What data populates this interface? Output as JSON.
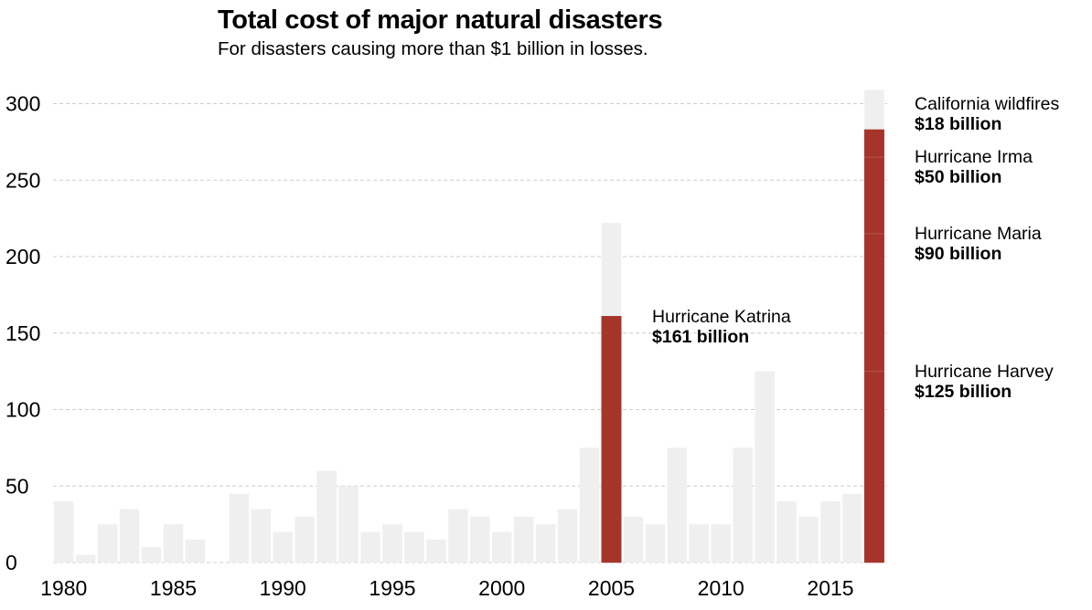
{
  "title": "Total cost of major natural disasters",
  "subtitle": "For disasters causing more than $1 billion in losses.",
  "colors": {
    "background_bar": "#efefef",
    "highlight": "#a5342b",
    "grid": "#cccccc",
    "text": "#000000"
  },
  "chart_data": {
    "type": "bar",
    "title": "Total cost of major natural disasters",
    "subtitle": "For disasters causing more than $1 billion in losses.",
    "xlabel": "",
    "ylabel": "",
    "ylim": [
      0,
      310
    ],
    "grid": true,
    "yticks": [
      0,
      50,
      100,
      150,
      200,
      250,
      300
    ],
    "xticks": [
      1980,
      1985,
      1990,
      1995,
      2000,
      2005,
      2010,
      2015
    ],
    "categories": [
      1980,
      1981,
      1982,
      1983,
      1984,
      1985,
      1986,
      1987,
      1988,
      1989,
      1990,
      1991,
      1992,
      1993,
      1994,
      1995,
      1996,
      1997,
      1998,
      1999,
      2000,
      2001,
      2002,
      2003,
      2004,
      2005,
      2006,
      2007,
      2008,
      2009,
      2010,
      2011,
      2012,
      2013,
      2014,
      2015,
      2016,
      2017
    ],
    "totals": [
      40,
      5,
      25,
      35,
      10,
      25,
      15,
      0,
      45,
      35,
      20,
      30,
      60,
      50,
      20,
      25,
      20,
      15,
      35,
      30,
      20,
      30,
      25,
      35,
      75,
      222,
      30,
      25,
      75,
      25,
      25,
      75,
      125,
      40,
      30,
      40,
      45,
      309
    ],
    "highlighted_events": [
      {
        "year": 2005,
        "name": "Hurricane Katrina",
        "value_label": "$161 billion",
        "value": 161
      },
      {
        "year": 2017,
        "name": "Hurricane Harvey",
        "value_label": "$125 billion",
        "value": 125
      },
      {
        "year": 2017,
        "name": "Hurricane Maria",
        "value_label": "$90 billion",
        "value": 90
      },
      {
        "year": 2017,
        "name": "Hurricane Irma",
        "value_label": "$50 billion",
        "value": 50
      },
      {
        "year": 2017,
        "name": "California wildfires",
        "value_label": "$18 billion",
        "value": 18
      }
    ]
  }
}
